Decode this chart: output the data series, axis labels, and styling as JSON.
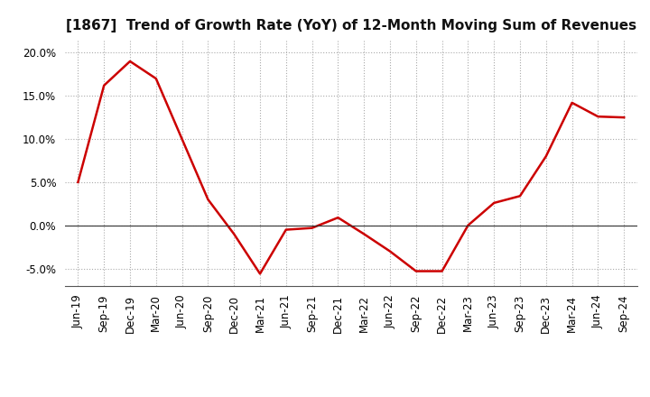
{
  "title": "[1867]  Trend of Growth Rate (YoY) of 12-Month Moving Sum of Revenues",
  "line_color": "#CC0000",
  "line_width": 1.8,
  "background_color": "#FFFFFF",
  "plot_bg_color": "#FFFFFF",
  "grid_color": "#AAAAAA",
  "ylim": [
    -0.07,
    0.215
  ],
  "yticks": [
    -0.05,
    0.0,
    0.05,
    0.1,
    0.15,
    0.2
  ],
  "x_labels": [
    "Jun-19",
    "Sep-19",
    "Dec-19",
    "Mar-20",
    "Jun-20",
    "Sep-20",
    "Dec-20",
    "Mar-21",
    "Jun-21",
    "Sep-21",
    "Dec-21",
    "Mar-22",
    "Jun-22",
    "Sep-22",
    "Dec-22",
    "Mar-23",
    "Jun-23",
    "Sep-23",
    "Dec-23",
    "Mar-24",
    "Jun-24",
    "Sep-24"
  ],
  "values": [
    0.05,
    0.162,
    0.19,
    0.17,
    0.1,
    0.03,
    -0.01,
    -0.056,
    -0.005,
    -0.003,
    0.009,
    -0.01,
    -0.03,
    -0.053,
    -0.053,
    0.0,
    0.026,
    0.034,
    0.08,
    0.142,
    0.126,
    0.125
  ],
  "title_fontsize": 11,
  "tick_fontsize": 8.5
}
